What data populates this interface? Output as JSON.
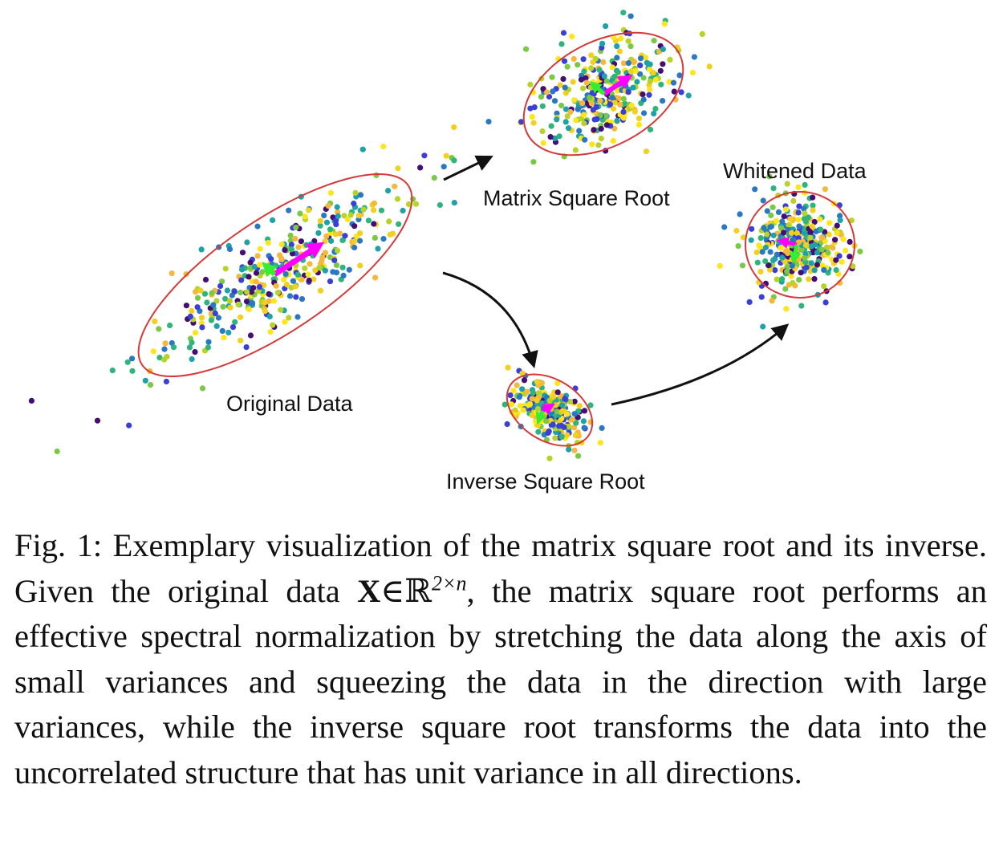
{
  "figure": {
    "labels": {
      "original": "Original Data",
      "matrix_sqrt": "Matrix Square Root",
      "whitened": "Whitened Data",
      "inverse_sqrt": "Inverse Square Root"
    },
    "colors": {
      "ellipse": "#d43a3a",
      "arrow": "#111111",
      "major_axis": "#ff00ff",
      "minor_axis": "#33ee33",
      "palette": [
        "#440e74",
        "#3a3fd6",
        "#2a78c2",
        "#1ea1a8",
        "#2fb47c",
        "#7ac945",
        "#b7d32a",
        "#f2d020",
        "#f5b83d",
        "#ffe51a"
      ]
    }
  },
  "caption": {
    "prefix": "Fig. 1: Exemplary visualization of the matrix square root and its inverse. Given the original data ",
    "symbol_X": "X",
    "symbol_in": "∈ℝ",
    "superscript": "2×n",
    "suffix": ", the matrix square root performs an effective spectral normalization by stretching the data along the axis of small variances and squeezing the data in the direction with large variances, while the inverse square root transforms the data into the uncorrelated structure that has unit variance in all directions."
  }
}
